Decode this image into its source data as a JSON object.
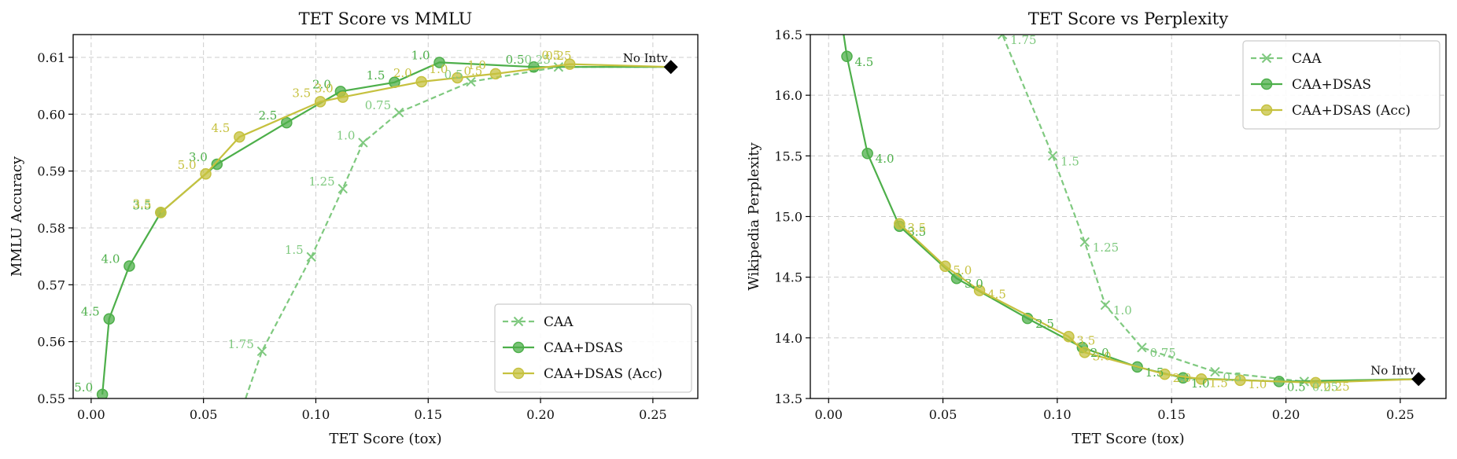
{
  "chart_data": [
    {
      "type": "line",
      "title": "TET Score vs MMLU",
      "xlabel": "TET Score (tox)",
      "ylabel": "MMLU Accuracy",
      "xlim": [
        -0.008,
        0.27
      ],
      "ylim": [
        0.55,
        0.614
      ],
      "xticks": [
        "0.00",
        "0.05",
        "0.10",
        "0.15",
        "0.20",
        "0.25"
      ],
      "yticks": [
        "0.55",
        "0.56",
        "0.57",
        "0.58",
        "0.59",
        "0.60",
        "0.61"
      ],
      "grid": true,
      "legend_position": "lower-right",
      "series": [
        {
          "name": "CAA",
          "color": "#7fc97f",
          "style": "dashed",
          "marker": "x",
          "points": [
            {
              "x": 0.06,
              "y": 0.54,
              "label": ""
            },
            {
              "x": 0.076,
              "y": 0.5583,
              "label": "1.75"
            },
            {
              "x": 0.098,
              "y": 0.5749,
              "label": "1.5"
            },
            {
              "x": 0.112,
              "y": 0.5869,
              "label": "1.25"
            },
            {
              "x": 0.121,
              "y": 0.595,
              "label": "1.0"
            },
            {
              "x": 0.137,
              "y": 0.6003,
              "label": "0.75"
            },
            {
              "x": 0.169,
              "y": 0.6057,
              "label": "0.5"
            },
            {
              "x": 0.208,
              "y": 0.6083,
              "label": "0.25"
            },
            {
              "x": 0.258,
              "y": 0.6083,
              "label": ""
            }
          ]
        },
        {
          "name": "CAA+DSAS",
          "color": "#4daf4a",
          "style": "solid",
          "marker": "o",
          "points": [
            {
              "x": 0.005,
              "y": 0.5507,
              "label": "5.0"
            },
            {
              "x": 0.008,
              "y": 0.564,
              "label": "4.5"
            },
            {
              "x": 0.017,
              "y": 0.5733,
              "label": "4.0"
            },
            {
              "x": 0.031,
              "y": 0.5827,
              "label": "3.5"
            },
            {
              "x": 0.056,
              "y": 0.5912,
              "label": "3.0"
            },
            {
              "x": 0.087,
              "y": 0.5985,
              "label": "2.5"
            },
            {
              "x": 0.111,
              "y": 0.604,
              "label": "2.0"
            },
            {
              "x": 0.135,
              "y": 0.6056,
              "label": "1.5"
            },
            {
              "x": 0.155,
              "y": 0.6091,
              "label": "1.0"
            },
            {
              "x": 0.197,
              "y": 0.6083,
              "label": "0.5"
            },
            {
              "x": 0.258,
              "y": 0.6083,
              "label": ""
            }
          ]
        },
        {
          "name": "CAA+DSAS (Acc)",
          "color": "#c6c13f",
          "style": "solid",
          "marker": "o",
          "points": [
            {
              "x": 0.031,
              "y": 0.5827,
              "label": "3.5"
            },
            {
              "x": 0.051,
              "y": 0.5895,
              "label": "5.0"
            },
            {
              "x": 0.066,
              "y": 0.596,
              "label": "4.5"
            },
            {
              "x": 0.102,
              "y": 0.6022,
              "label": "3.5"
            },
            {
              "x": 0.112,
              "y": 0.603,
              "label": "3.0"
            },
            {
              "x": 0.147,
              "y": 0.6057,
              "label": "2.0"
            },
            {
              "x": 0.163,
              "y": 0.6064,
              "label": "1.0"
            },
            {
              "x": 0.18,
              "y": 0.6071,
              "label": "1.0"
            },
            {
              "x": 0.213,
              "y": 0.6088,
              "label": "0.5"
            },
            {
              "x": 0.258,
              "y": 0.6083,
              "label": ""
            }
          ]
        }
      ],
      "extra_labels": [
        {
          "x": 0.17,
          "y": 0.6063,
          "text": "0.5",
          "color": "#c6c13f"
        },
        {
          "x": 0.208,
          "y": 0.609,
          "text": "0.25",
          "color": "#c6c13f"
        }
      ],
      "reference_point": {
        "x": 0.258,
        "y": 0.6083,
        "label": "No Intv"
      }
    },
    {
      "type": "line",
      "title": "TET Score vs Perplexity",
      "xlabel": "TET Score (tox)",
      "ylabel": "Wikipedia Perplexity",
      "xlim": [
        -0.008,
        0.27
      ],
      "ylim": [
        13.5,
        16.5
      ],
      "xticks": [
        "0.00",
        "0.05",
        "0.10",
        "0.15",
        "0.20",
        "0.25"
      ],
      "yticks": [
        "13.5",
        "14.0",
        "14.5",
        "15.0",
        "15.5",
        "16.0",
        "16.5"
      ],
      "grid": true,
      "legend_position": "upper-right",
      "series": [
        {
          "name": "CAA",
          "color": "#7fc97f",
          "style": "dashed",
          "marker": "x",
          "points": [
            {
              "x": 0.07,
              "y": 16.9,
              "label": ""
            },
            {
              "x": 0.076,
              "y": 16.5,
              "label": "1.75"
            },
            {
              "x": 0.098,
              "y": 15.5,
              "label": "1.5"
            },
            {
              "x": 0.112,
              "y": 14.79,
              "label": "1.25"
            },
            {
              "x": 0.121,
              "y": 14.27,
              "label": "1.0"
            },
            {
              "x": 0.137,
              "y": 13.92,
              "label": "0.75"
            },
            {
              "x": 0.169,
              "y": 13.72,
              "label": "0.5"
            },
            {
              "x": 0.208,
              "y": 13.64,
              "label": "0.25"
            },
            {
              "x": 0.258,
              "y": 13.66,
              "label": ""
            }
          ]
        },
        {
          "name": "CAA+DSAS",
          "color": "#4daf4a",
          "style": "solid",
          "marker": "o",
          "points": [
            {
              "x": 0.005,
              "y": 16.7,
              "label": ""
            },
            {
              "x": 0.008,
              "y": 16.32,
              "label": "4.5"
            },
            {
              "x": 0.017,
              "y": 15.52,
              "label": "4.0"
            },
            {
              "x": 0.031,
              "y": 14.92,
              "label": "3.5"
            },
            {
              "x": 0.056,
              "y": 14.49,
              "label": "3.0"
            },
            {
              "x": 0.087,
              "y": 14.16,
              "label": "2.5"
            },
            {
              "x": 0.111,
              "y": 13.92,
              "label": "2.0"
            },
            {
              "x": 0.135,
              "y": 13.76,
              "label": "1.5"
            },
            {
              "x": 0.155,
              "y": 13.67,
              "label": "1.0"
            },
            {
              "x": 0.197,
              "y": 13.64,
              "label": "0.5"
            },
            {
              "x": 0.258,
              "y": 13.66,
              "label": ""
            }
          ]
        },
        {
          "name": "CAA+DSAS (Acc)",
          "color": "#c6c13f",
          "style": "solid",
          "marker": "o",
          "points": [
            {
              "x": 0.031,
              "y": 14.94,
              "label": "3.5"
            },
            {
              "x": 0.051,
              "y": 14.59,
              "label": "5.0"
            },
            {
              "x": 0.066,
              "y": 14.39,
              "label": "4.5"
            },
            {
              "x": 0.105,
              "y": 14.01,
              "label": "3.5"
            },
            {
              "x": 0.112,
              "y": 13.88,
              "label": "3.0"
            },
            {
              "x": 0.147,
              "y": 13.7,
              "label": "2.0"
            },
            {
              "x": 0.163,
              "y": 13.66,
              "label": "1.5"
            },
            {
              "x": 0.18,
              "y": 13.65,
              "label": "1.0"
            },
            {
              "x": 0.213,
              "y": 13.63,
              "label": "0.25"
            },
            {
              "x": 0.258,
              "y": 13.66,
              "label": ""
            }
          ]
        }
      ],
      "extra_labels": [],
      "reference_point": {
        "x": 0.258,
        "y": 13.66,
        "label": "No Intv"
      }
    }
  ]
}
